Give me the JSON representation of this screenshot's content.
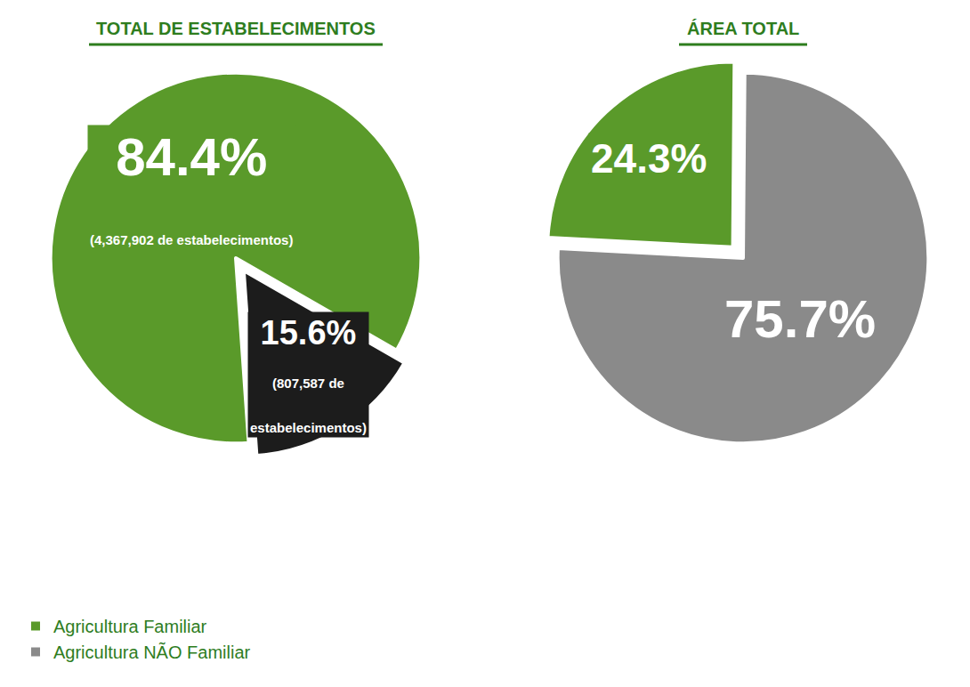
{
  "chart_data": [
    {
      "type": "pie",
      "title": "TOTAL DE ESTABELECIMENTOS",
      "categories": [
        "Agricultura Familiar",
        "Agricultura NÃO Familiar"
      ],
      "values": [
        84.4,
        15.6
      ],
      "value_labels": [
        "84.4%",
        "15.6%"
      ],
      "count_labels": [
        "(4,367,902 de estabelecimentos)",
        "(807,587 de estabelecimentos)"
      ],
      "colors": [
        "#5a9a2a",
        "#1c1c1c"
      ]
    },
    {
      "type": "pie",
      "title": "ÁREA TOTAL",
      "categories": [
        "Agricultura Familiar",
        "Agricultura NÃO Familiar"
      ],
      "values": [
        24.3,
        75.7
      ],
      "value_labels": [
        "24.3%",
        "75.7%"
      ],
      "colors": [
        "#5a9a2a",
        "#8a8a8a"
      ],
      "legend": "lower left"
    }
  ]
}
